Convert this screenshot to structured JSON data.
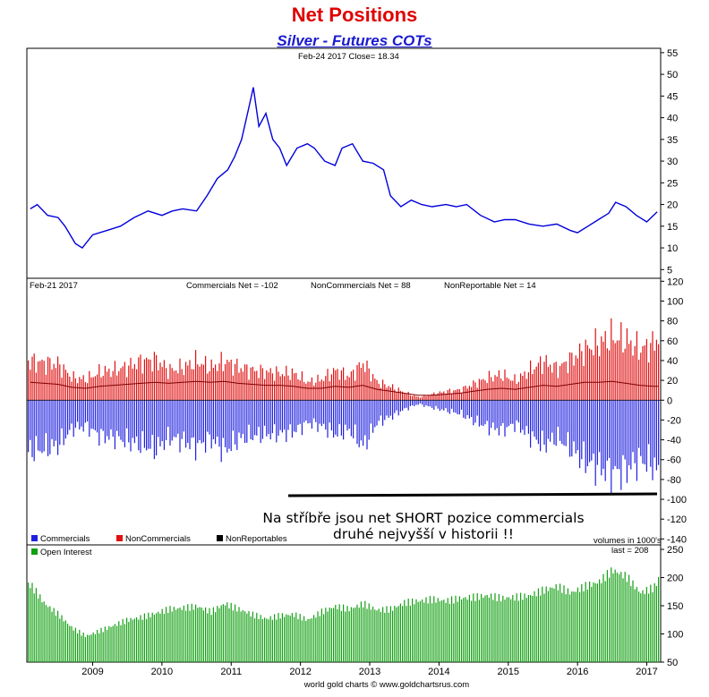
{
  "header": {
    "title": "Net Positions",
    "subtitle": "Silver - Futures COTs"
  },
  "footer": {
    "credit": "world gold charts © www.goldchartsrus.com"
  },
  "annotation": {
    "line1": "Na stříbře jsou net SHORT pozice commercials",
    "line2": "druhé nejvyšší v historii !!"
  },
  "colors": {
    "price": "#0000dd",
    "commercials": "#2020e0",
    "noncommercials": "#e01010",
    "open_interest": "#11a011",
    "title": "#e00000",
    "subtitle": "#1a1ad0"
  },
  "x_ticks": [
    "2009",
    "2010",
    "2011",
    "2012",
    "2013",
    "2014",
    "2015",
    "2016",
    "2017"
  ],
  "chart_data": [
    {
      "type": "line",
      "panel": "price",
      "header_text": "Feb-24  2017   Close= 18.34",
      "yticks": [
        "55",
        "50",
        "45",
        "40",
        "35",
        "30",
        "25",
        "20",
        "15",
        "10",
        "5"
      ],
      "ylim": [
        3,
        56
      ],
      "x": [
        2008.1,
        2008.2,
        2008.35,
        2008.5,
        2008.6,
        2008.75,
        2008.85,
        2009.0,
        2009.2,
        2009.4,
        2009.6,
        2009.8,
        2010.0,
        2010.15,
        2010.3,
        2010.5,
        2010.65,
        2010.8,
        2010.95,
        2011.05,
        2011.15,
        2011.25,
        2011.32,
        2011.4,
        2011.5,
        2011.6,
        2011.7,
        2011.8,
        2011.95,
        2012.1,
        2012.2,
        2012.35,
        2012.5,
        2012.6,
        2012.75,
        2012.9,
        2013.05,
        2013.2,
        2013.3,
        2013.45,
        2013.6,
        2013.75,
        2013.9,
        2014.1,
        2014.25,
        2014.4,
        2014.6,
        2014.8,
        2014.95,
        2015.1,
        2015.3,
        2015.5,
        2015.7,
        2015.9,
        2016.0,
        2016.15,
        2016.3,
        2016.45,
        2016.55,
        2016.7,
        2016.85,
        2017.0,
        2017.15
      ],
      "y": [
        19,
        20,
        17.5,
        17,
        15,
        11,
        10,
        13,
        14,
        15,
        17,
        18.5,
        17.5,
        18.5,
        19,
        18.5,
        22,
        26,
        28,
        31,
        35,
        42,
        47,
        38,
        41,
        35,
        33,
        29,
        33,
        34,
        33,
        30,
        29,
        33,
        34,
        30,
        29.5,
        28,
        22,
        19.5,
        21,
        20,
        19.5,
        20,
        19.5,
        20,
        17.5,
        16,
        16.5,
        16.5,
        15.5,
        15,
        15.5,
        14,
        13.5,
        15,
        16.5,
        18,
        20.5,
        19.5,
        17.5,
        16,
        18.3
      ]
    },
    {
      "type": "bar",
      "panel": "net_positions",
      "header_date": "Feb-21  2017",
      "legend_top": [
        "Commercials Net = -102",
        "NonCommercials Net = 88",
        "NonReportable Net = 14"
      ],
      "legend": [
        "Commercials",
        "NonCommercials",
        "NonReportables"
      ],
      "units": "volumes in 1000's",
      "yticks": [
        "120",
        "100",
        "80",
        "60",
        "40",
        "20",
        "0",
        "-20",
        "-40",
        "-60",
        "-80",
        "-100",
        "-120",
        "-140"
      ],
      "ylim": [
        -146,
        123
      ],
      "x": [
        2008.1,
        2008.3,
        2008.5,
        2008.7,
        2008.9,
        2009.1,
        2009.3,
        2009.5,
        2009.7,
        2009.9,
        2010.1,
        2010.3,
        2010.5,
        2010.7,
        2010.9,
        2011.1,
        2011.3,
        2011.5,
        2011.7,
        2011.9,
        2012.1,
        2012.3,
        2012.5,
        2012.7,
        2012.9,
        2013.1,
        2013.3,
        2013.5,
        2013.7,
        2013.9,
        2014.1,
        2014.3,
        2014.5,
        2014.7,
        2014.9,
        2015.1,
        2015.3,
        2015.5,
        2015.7,
        2015.9,
        2016.1,
        2016.3,
        2016.5,
        2016.7,
        2016.9,
        2017.1,
        2017.17
      ],
      "series": [
        {
          "name": "Commercials",
          "values": [
            -68,
            -65,
            -60,
            -38,
            -35,
            -48,
            -50,
            -55,
            -60,
            -66,
            -50,
            -55,
            -62,
            -52,
            -68,
            -52,
            -48,
            -46,
            -45,
            -42,
            -30,
            -35,
            -46,
            -40,
            -62,
            -30,
            -22,
            -12,
            -5,
            -10,
            -14,
            -18,
            -28,
            -36,
            -40,
            -32,
            -48,
            -60,
            -50,
            -65,
            -82,
            -90,
            -98,
            -92,
            -80,
            -88,
            -102
          ]
        },
        {
          "name": "NonCommercials",
          "values": [
            52,
            50,
            48,
            30,
            28,
            38,
            40,
            45,
            52,
            54,
            40,
            44,
            52,
            44,
            52,
            44,
            40,
            38,
            36,
            36,
            24,
            28,
            40,
            32,
            50,
            24,
            18,
            10,
            4,
            8,
            12,
            14,
            22,
            30,
            34,
            26,
            40,
            52,
            42,
            55,
            68,
            76,
            85,
            80,
            68,
            76,
            88
          ]
        }
      ],
      "average_series": [
        18,
        17,
        16,
        13,
        12,
        14,
        15,
        16,
        17,
        18,
        17,
        18,
        19,
        18,
        19,
        17,
        16,
        15,
        15,
        14,
        12,
        12,
        14,
        13,
        15,
        11,
        9,
        7,
        5,
        5,
        6,
        7,
        9,
        11,
        12,
        11,
        13,
        15,
        14,
        16,
        18,
        18,
        19,
        17,
        15,
        14,
        14
      ]
    },
    {
      "type": "bar",
      "panel": "open_interest",
      "legend": [
        "Open Interest"
      ],
      "header_text": "last = 208",
      "yticks": [
        "250",
        "200",
        "150",
        "100",
        "50"
      ],
      "ylim": [
        50,
        258
      ],
      "x": [
        2008.1,
        2008.3,
        2008.5,
        2008.7,
        2008.9,
        2009.1,
        2009.3,
        2009.5,
        2009.7,
        2009.9,
        2010.1,
        2010.3,
        2010.5,
        2010.7,
        2010.9,
        2011.1,
        2011.3,
        2011.5,
        2011.7,
        2011.9,
        2012.1,
        2012.3,
        2012.5,
        2012.7,
        2012.9,
        2013.1,
        2013.3,
        2013.5,
        2013.7,
        2013.9,
        2014.1,
        2014.3,
        2014.5,
        2014.7,
        2014.9,
        2015.1,
        2015.3,
        2015.5,
        2015.7,
        2015.9,
        2016.1,
        2016.3,
        2016.5,
        2016.7,
        2016.9,
        2017.1,
        2017.17
      ],
      "values": [
        195,
        160,
        140,
        115,
        100,
        110,
        120,
        130,
        135,
        142,
        150,
        152,
        155,
        145,
        160,
        150,
        140,
        132,
        138,
        140,
        130,
        145,
        155,
        150,
        160,
        148,
        150,
        162,
        165,
        168,
        165,
        170,
        172,
        175,
        170,
        172,
        175,
        185,
        192,
        180,
        192,
        200,
        222,
        210,
        180,
        190,
        208
      ]
    }
  ]
}
